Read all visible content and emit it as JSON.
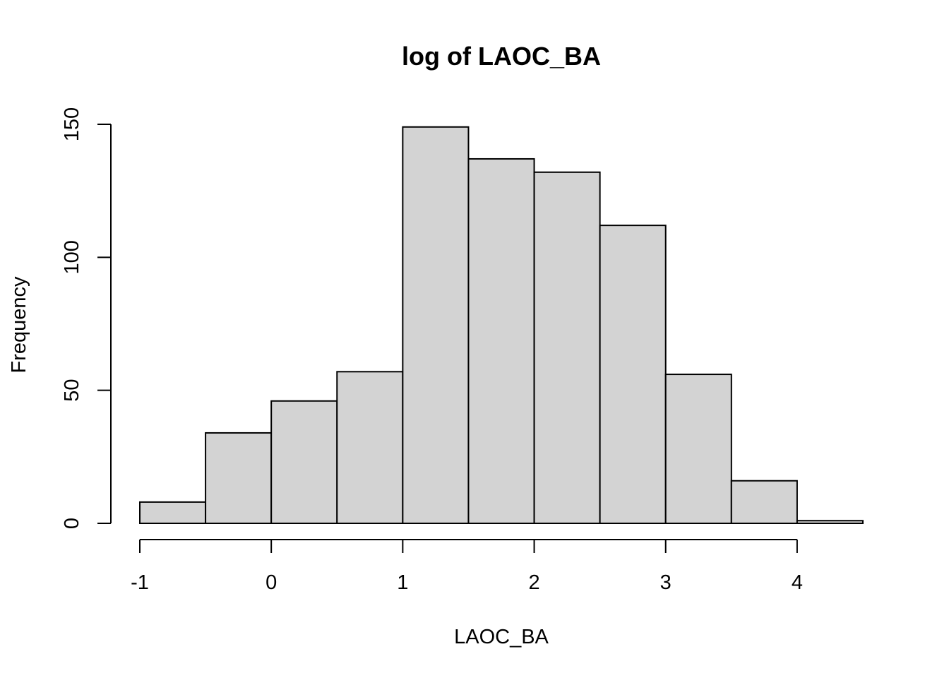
{
  "chart_data": {
    "type": "bar",
    "subtype": "histogram",
    "title": "log of LAOC_BA",
    "xlabel": "LAOC_BA",
    "ylabel": "Frequency",
    "bins": [
      {
        "start": -1.0,
        "end": -0.5,
        "count": 8
      },
      {
        "start": -0.5,
        "end": 0.0,
        "count": 34
      },
      {
        "start": 0.0,
        "end": 0.5,
        "count": 46
      },
      {
        "start": 0.5,
        "end": 1.0,
        "count": 57
      },
      {
        "start": 1.0,
        "end": 1.5,
        "count": 149
      },
      {
        "start": 1.5,
        "end": 2.0,
        "count": 137
      },
      {
        "start": 2.0,
        "end": 2.5,
        "count": 132
      },
      {
        "start": 2.5,
        "end": 3.0,
        "count": 112
      },
      {
        "start": 3.0,
        "end": 3.5,
        "count": 56
      },
      {
        "start": 3.5,
        "end": 4.0,
        "count": 16
      },
      {
        "start": 4.0,
        "end": 4.5,
        "count": 1
      }
    ],
    "xlim": [
      -1,
      4.5
    ],
    "ylim": [
      0,
      150
    ],
    "x_ticks": [
      -1,
      0,
      1,
      2,
      3,
      4
    ],
    "x_tick_labels": [
      "-1",
      "0",
      "1",
      "2",
      "3",
      "4"
    ],
    "y_ticks": [
      0,
      50,
      100,
      150
    ],
    "y_tick_labels": [
      "0",
      "50",
      "100",
      "150"
    ],
    "bar_color": "#d3d3d3",
    "edge_color": "#000000",
    "grid": false
  }
}
